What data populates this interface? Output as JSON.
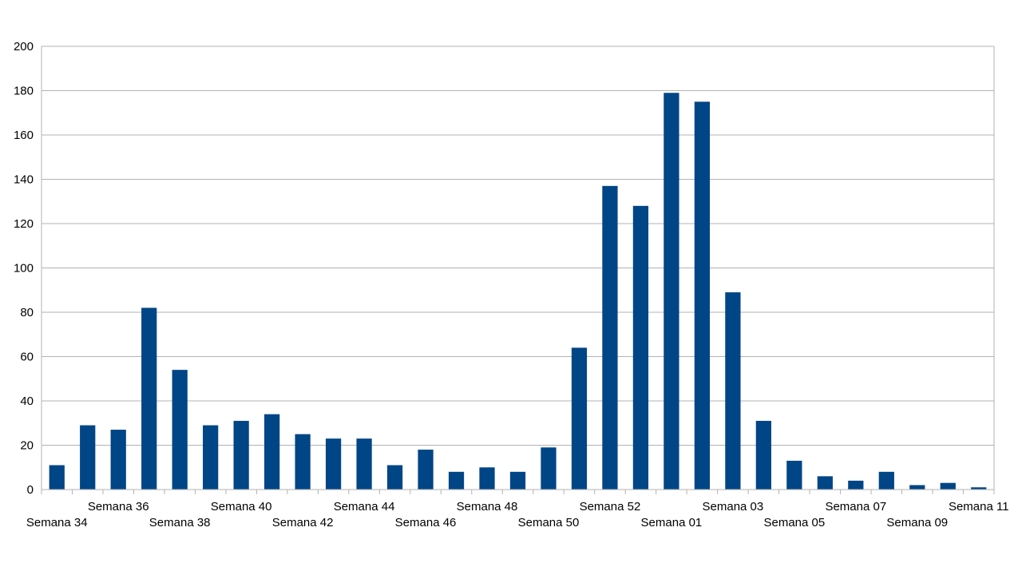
{
  "chart_data": {
    "type": "bar",
    "title": "",
    "xlabel": "",
    "ylabel": "",
    "ylim": [
      0,
      200
    ],
    "yticks": [
      "0",
      "20",
      "40",
      "60",
      "80",
      "100",
      "120",
      "140",
      "160",
      "180",
      "200"
    ],
    "grid": true,
    "legend": "none",
    "bar_color": "#004586",
    "categories": [
      "Semana 34",
      "Semana 35",
      "Semana 36",
      "Semana 37",
      "Semana 38",
      "Semana 39",
      "Semana 40",
      "Semana 41",
      "Semana 42",
      "Semana 43",
      "Semana 44",
      "Semana 45",
      "Semana 46",
      "Semana 47",
      "Semana 48",
      "Semana 49",
      "Semana 50",
      "Semana 51",
      "Semana 52",
      "Semana 53",
      "Semana 01",
      "Semana 02",
      "Semana 03",
      "Semana 04",
      "Semana 05",
      "Semana 06",
      "Semana 07",
      "Semana 08",
      "Semana 09",
      "Semana 10",
      "Semana 11"
    ],
    "shown_category_labels": [
      "Semana 34",
      "Semana 36",
      "Semana 38",
      "Semana 40",
      "Semana 42",
      "Semana 44",
      "Semana 46",
      "Semana 48",
      "Semana 50",
      "Semana 52",
      "Semana 01",
      "Semana 03",
      "Semana 05",
      "Semana 07",
      "Semana 09",
      "Semana 11"
    ],
    "values": [
      11,
      29,
      27,
      82,
      54,
      29,
      31,
      34,
      25,
      23,
      23,
      11,
      18,
      8,
      10,
      8,
      19,
      64,
      137,
      128,
      179,
      175,
      89,
      31,
      13,
      6,
      4,
      8,
      2,
      3,
      1
    ]
  }
}
